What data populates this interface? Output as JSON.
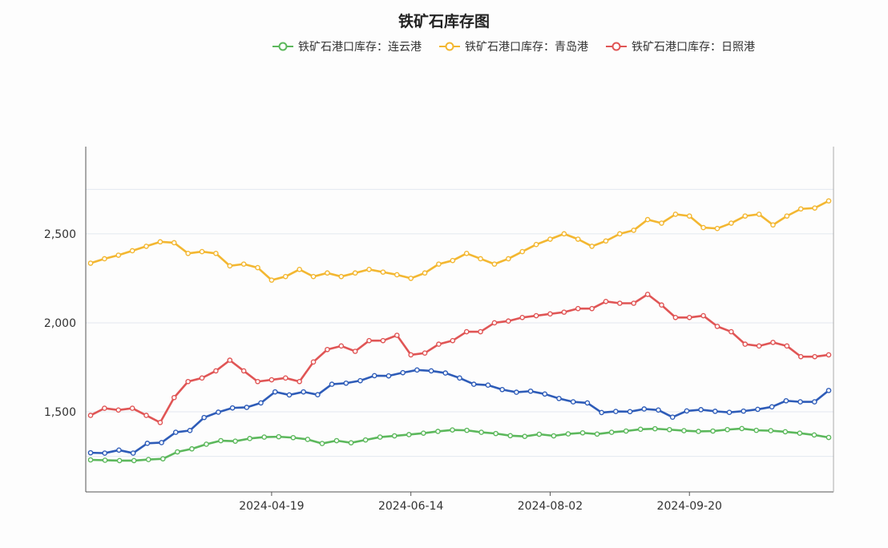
{
  "chart_data": {
    "type": "line",
    "title": "铁矿石库存图",
    "x_ticks": [
      "2024-04-19",
      "2024-06-14",
      "2024-08-02",
      "2024-09-20"
    ],
    "y_ticks": [
      1500,
      2000,
      2500
    ],
    "y_tick_labels": [
      "1,500",
      "2,000",
      "2,500"
    ],
    "ylim": [
      1050,
      2990
    ],
    "grid": true,
    "legend_position": "top-right",
    "colors": {
      "lianyungang": "#5cb85c",
      "qingdao": "#f3b731",
      "rizhao": "#e05555",
      "unnamed": "#2e5cb8"
    },
    "series": [
      {
        "key": "lianyungang",
        "name": "铁矿石港口库存：连云港",
        "values": [
          1230,
          1228,
          1226,
          1226,
          1232,
          1236,
          1275,
          1292,
          1318,
          1338,
          1335,
          1350,
          1358,
          1360,
          1355,
          1345,
          1322,
          1338,
          1326,
          1342,
          1358,
          1365,
          1372,
          1380,
          1390,
          1398,
          1396,
          1385,
          1378,
          1366,
          1362,
          1374,
          1365,
          1376,
          1382,
          1375,
          1385,
          1392,
          1402,
          1405,
          1400,
          1394,
          1390,
          1392,
          1400,
          1406,
          1396,
          1394,
          1388,
          1380,
          1370,
          1356
        ]
      },
      {
        "key": "qingdao",
        "name": "铁矿石港口库存：青岛港",
        "values": [
          2335,
          2360,
          2380,
          2405,
          2430,
          2455,
          2450,
          2390,
          2400,
          2390,
          2320,
          2330,
          2310,
          2240,
          2260,
          2300,
          2260,
          2280,
          2260,
          2280,
          2300,
          2285,
          2270,
          2250,
          2280,
          2330,
          2350,
          2390,
          2360,
          2330,
          2360,
          2400,
          2440,
          2470,
          2500,
          2470,
          2430,
          2460,
          2500,
          2520,
          2580,
          2560,
          2610,
          2600,
          2535,
          2530,
          2560,
          2600,
          2610,
          2550,
          2600,
          2640,
          2645,
          2685
        ]
      },
      {
        "key": "rizhao",
        "name": "铁矿石港口库存：日照港",
        "values": [
          1480,
          1520,
          1510,
          1520,
          1480,
          1440,
          1580,
          1670,
          1690,
          1730,
          1790,
          1730,
          1670,
          1680,
          1690,
          1670,
          1780,
          1850,
          1870,
          1840,
          1900,
          1900,
          1930,
          1820,
          1830,
          1880,
          1900,
          1950,
          1950,
          2000,
          2010,
          2030,
          2040,
          2050,
          2060,
          2080,
          2080,
          2120,
          2110,
          2110,
          2160,
          2100,
          2030,
          2030,
          2040,
          1980,
          1950,
          1880,
          1870,
          1890,
          1870,
          1810,
          1810,
          1820
        ]
      },
      {
        "key": "unnamed",
        "values": [
          1270,
          1268,
          1285,
          1268,
          1323,
          1327,
          1385,
          1395,
          1468,
          1498,
          1522,
          1525,
          1550,
          1612,
          1595,
          1612,
          1596,
          1655,
          1661,
          1675,
          1703,
          1702,
          1720,
          1735,
          1730,
          1718,
          1690,
          1655,
          1650,
          1625,
          1610,
          1616,
          1600,
          1575,
          1556,
          1550,
          1496,
          1502,
          1501,
          1516,
          1510,
          1470,
          1505,
          1512,
          1503,
          1497,
          1504,
          1514,
          1528,
          1562,
          1556,
          1556,
          1620
        ]
      }
    ]
  }
}
